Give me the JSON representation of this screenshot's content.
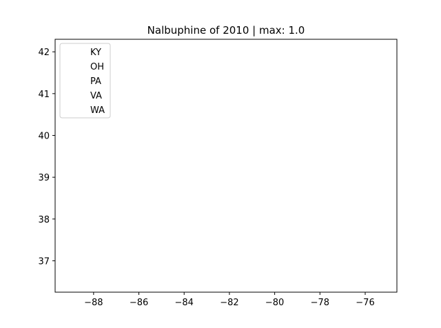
{
  "chart_data": {
    "type": "scatter",
    "title": "Nalbuphine of 2010 | max: 1.0",
    "xlabel": "",
    "ylabel": "",
    "xlim": [
      -89.7,
      -74.6
    ],
    "ylim": [
      36.25,
      42.3
    ],
    "xticks": [
      -88,
      -86,
      -84,
      -82,
      -80,
      -78,
      -76
    ],
    "xtick_labels": [
      "−88",
      "−86",
      "−84",
      "−82",
      "−80",
      "−78",
      "−76"
    ],
    "yticks": [
      37,
      38,
      39,
      40,
      41,
      42
    ],
    "ytick_labels": [
      "37",
      "38",
      "39",
      "40",
      "41",
      "42"
    ],
    "grid": false,
    "legend": {
      "placement": "top-left",
      "entries": [
        "KY",
        "OH",
        "PA",
        "VA",
        "WA"
      ]
    },
    "series": [
      {
        "name": "KY",
        "points": []
      },
      {
        "name": "OH",
        "points": []
      },
      {
        "name": "PA",
        "points": []
      },
      {
        "name": "VA",
        "points": []
      },
      {
        "name": "WA",
        "points": []
      }
    ]
  }
}
